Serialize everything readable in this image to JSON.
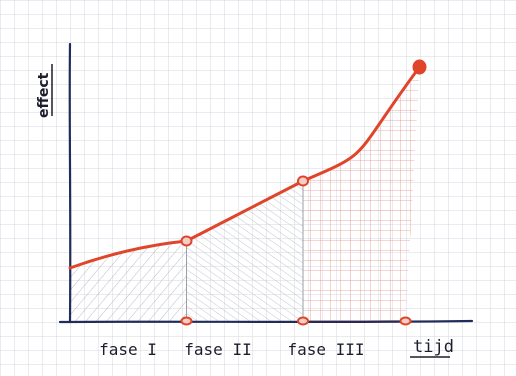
{
  "chart_data": {
    "type": "line",
    "xlabel": "tijd",
    "ylabel": "effect",
    "phases": [
      "fase I",
      "fase II",
      "fase III"
    ],
    "x": [
      0,
      1,
      2,
      3
    ],
    "y": [
      0.18,
      0.27,
      0.47,
      0.85
    ],
    "phase_boundaries": [
      1,
      2,
      3
    ],
    "colors": {
      "curve": "#e0452b",
      "axis": "#222c5a",
      "grid": "#cfd3da",
      "hatch_phase1": "#9aa0a8",
      "hatch_phase3": "#e07a70"
    },
    "grid": true
  }
}
